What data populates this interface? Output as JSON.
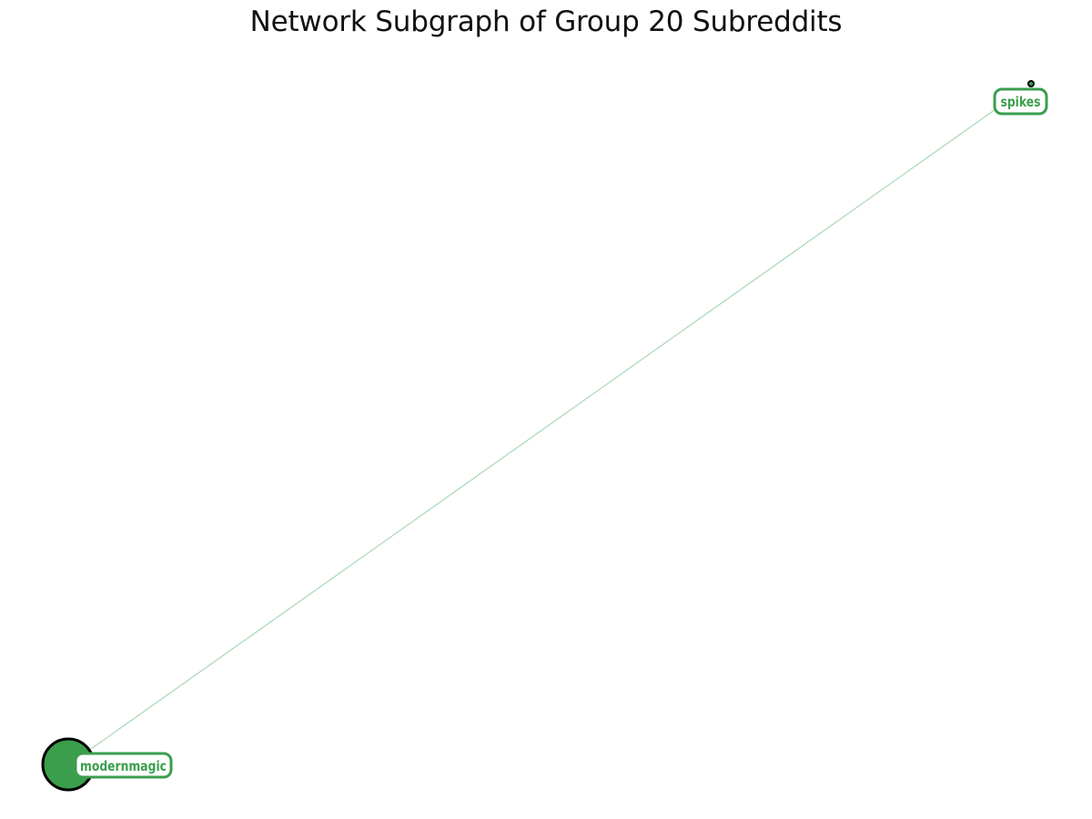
{
  "title": "Network Subgraph of Group 20 Subreddits",
  "colors": {
    "node_fill": "#3a9e4c",
    "node_stroke": "#000000",
    "edge": "#a8d8b4",
    "label_border": "#3a9e4c",
    "label_text": "#3a9e4c"
  },
  "nodes": [
    {
      "id": "modernmagic",
      "label": "modernmagic",
      "size": "large"
    },
    {
      "id": "spikes",
      "label": "spikes",
      "size": "small"
    }
  ],
  "edges": [
    {
      "source": "modernmagic",
      "target": "spikes"
    }
  ]
}
